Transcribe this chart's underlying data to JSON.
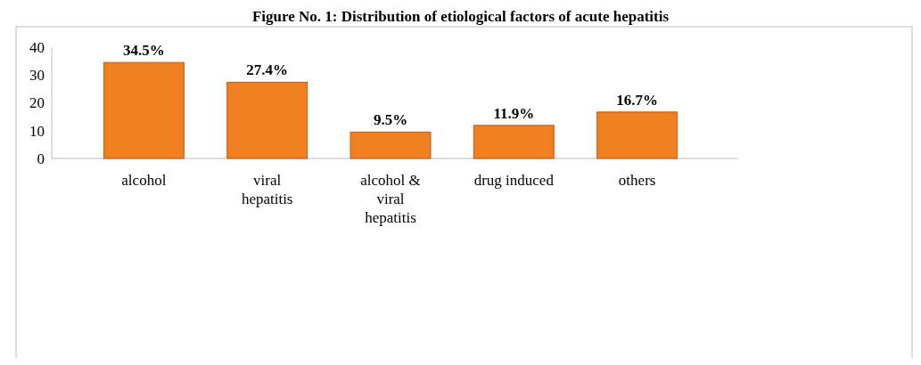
{
  "chart_data": {
    "type": "bar",
    "title": "Figure No. 1: Distribution of etiological factors of acute hepatitis",
    "categories": [
      "alcohol",
      "viral hepatitis",
      "alcohol & viral hepatitis",
      "drug induced",
      "others"
    ],
    "values": [
      34.5,
      27.4,
      9.5,
      11.9,
      16.7
    ],
    "value_labels": [
      "34.5%",
      "27.4%",
      "9.5%",
      "11.9%",
      "16.7%"
    ],
    "color": "#f07f22",
    "ylim": [
      0,
      40
    ],
    "yticks": [
      0,
      10,
      20,
      30,
      40
    ],
    "grid": false
  }
}
